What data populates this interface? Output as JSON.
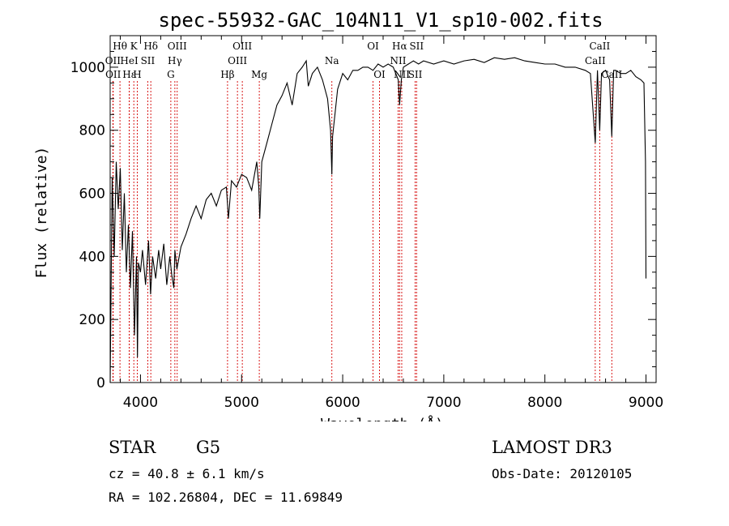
{
  "chart_data": {
    "type": "line",
    "title": "spec-55932-GAC_104N11_V1_sp10-002.fits",
    "xlabel": "Wavelength (Å)",
    "ylabel": "Flux (relative)",
    "xlim": [
      3700,
      9100
    ],
    "ylim": [
      0,
      1100
    ],
    "x_ticks": [
      4000,
      5000,
      6000,
      7000,
      8000,
      9000
    ],
    "y_ticks": [
      0,
      200,
      400,
      600,
      800,
      1000
    ],
    "series": [
      {
        "name": "flux",
        "x": [
          3700,
          3720,
          3740,
          3760,
          3780,
          3800,
          3820,
          3840,
          3860,
          3880,
          3900,
          3920,
          3940,
          3960,
          3970,
          3980,
          4000,
          4020,
          4050,
          4080,
          4100,
          4120,
          4150,
          4180,
          4200,
          4230,
          4260,
          4290,
          4310,
          4330,
          4340,
          4360,
          4400,
          4450,
          4500,
          4550,
          4600,
          4650,
          4700,
          4750,
          4800,
          4850,
          4870,
          4900,
          4950,
          5000,
          5050,
          5100,
          5150,
          5170,
          5180,
          5200,
          5250,
          5300,
          5350,
          5400,
          5450,
          5500,
          5550,
          5600,
          5640,
          5660,
          5700,
          5750,
          5800,
          5850,
          5880,
          5893,
          5900,
          5950,
          6000,
          6050,
          6100,
          6150,
          6200,
          6250,
          6300,
          6350,
          6400,
          6450,
          6500,
          6550,
          6563,
          6580,
          6600,
          6650,
          6700,
          6750,
          6800,
          6900,
          7000,
          7100,
          7200,
          7300,
          7400,
          7500,
          7600,
          7700,
          7800,
          7900,
          8000,
          8100,
          8200,
          8300,
          8400,
          8450,
          8498,
          8520,
          8542,
          8560,
          8600,
          8640,
          8662,
          8680,
          8700,
          8750,
          8800,
          8850,
          8900,
          8950,
          8980,
          8995,
          9000
        ],
        "y": [
          0,
          650,
          400,
          700,
          550,
          680,
          420,
          600,
          350,
          500,
          300,
          480,
          150,
          400,
          80,
          380,
          350,
          420,
          310,
          450,
          280,
          400,
          330,
          420,
          360,
          440,
          310,
          400,
          340,
          300,
          420,
          360,
          430,
          470,
          520,
          560,
          520,
          580,
          600,
          560,
          610,
          620,
          520,
          640,
          620,
          660,
          650,
          610,
          700,
          620,
          520,
          700,
          760,
          820,
          880,
          910,
          950,
          880,
          980,
          1000,
          1020,
          940,
          980,
          1000,
          960,
          900,
          800,
          660,
          780,
          930,
          980,
          960,
          990,
          990,
          1000,
          1000,
          990,
          1010,
          1000,
          1010,
          1000,
          960,
          880,
          960,
          1000,
          1010,
          1020,
          1010,
          1020,
          1010,
          1020,
          1010,
          1020,
          1025,
          1015,
          1030,
          1025,
          1030,
          1020,
          1015,
          1010,
          1010,
          1000,
          1000,
          990,
          980,
          760,
          990,
          800,
          980,
          990,
          960,
          780,
          990,
          990,
          980,
          980,
          990,
          970,
          960,
          950,
          700,
          330
        ]
      }
    ],
    "line_markers": [
      {
        "label": "Hθ",
        "x": 3797,
        "row": 0
      },
      {
        "label": "K",
        "x": 3934,
        "row": 0
      },
      {
        "label": "Hδ",
        "x": 4102,
        "row": 0
      },
      {
        "label": "OIII",
        "x": 4363,
        "row": 0
      },
      {
        "label": "OIII",
        "x": 5007,
        "row": 0
      },
      {
        "label": "OI",
        "x": 6300,
        "row": 0
      },
      {
        "label": "Hα",
        "x": 6563,
        "row": 0
      },
      {
        "label": "SII",
        "x": 6731,
        "row": 0
      },
      {
        "label": "CaII",
        "x": 8542,
        "row": 0
      },
      {
        "label": "OII",
        "x": 3727,
        "row": 1
      },
      {
        "label": "HeI",
        "x": 3889,
        "row": 1
      },
      {
        "label": "SII",
        "x": 4072,
        "row": 1
      },
      {
        "label": "Hγ",
        "x": 4340,
        "row": 1
      },
      {
        "label": "OIII",
        "x": 4959,
        "row": 1
      },
      {
        "label": "Na",
        "x": 5893,
        "row": 1
      },
      {
        "label": "NII",
        "x": 6548,
        "row": 1
      },
      {
        "label": "CaII",
        "x": 8498,
        "row": 1
      },
      {
        "label": "OII",
        "x": 3730,
        "row": 2
      },
      {
        "label": "Hε",
        "x": 3889,
        "row": 2
      },
      {
        "label": "H",
        "x": 3968,
        "row": 2
      },
      {
        "label": "G",
        "x": 4300,
        "row": 2
      },
      {
        "label": "Hβ",
        "x": 4861,
        "row": 2
      },
      {
        "label": "Mg",
        "x": 5175,
        "row": 2
      },
      {
        "label": "OI",
        "x": 6364,
        "row": 2
      },
      {
        "label": "NII",
        "x": 6584,
        "row": 2
      },
      {
        "label": "SII",
        "x": 6717,
        "row": 2
      },
      {
        "label": "CaII",
        "x": 8662,
        "row": 2
      }
    ]
  },
  "info": {
    "class": "STAR",
    "subclass": "G5",
    "survey": "LAMOST DR3",
    "cz": "cz = 40.8 ± 6.1 km/s",
    "obs_date": "Obs-Date: 20120105",
    "coords": "RA = 102.26804, DEC =  11.69849"
  }
}
